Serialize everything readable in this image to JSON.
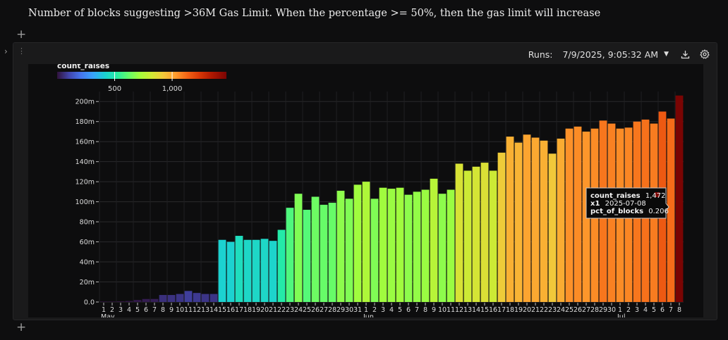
{
  "notebook": {
    "title": "Number of blocks suggesting >36M Gas Limit. When the percentage >= 50%, then the gas limit will increase"
  },
  "toolbar": {
    "runs_label": "Runs:",
    "run_value": "7/9/2025, 9:05:32 AM"
  },
  "icons": {
    "add_cell_top": "plus-icon",
    "add_cell_bottom": "plus-icon",
    "collapse": "chevron-right-icon",
    "drag": "drag-handle-icon",
    "download": "download-icon",
    "settings": "gear-icon"
  },
  "chart_data": {
    "type": "bar",
    "color_field": "count_raises",
    "legend": {
      "title": "count_raises",
      "ticks": [
        500,
        1000
      ],
      "tick_labels": [
        "500",
        "1,000"
      ],
      "domain": [
        0,
        1472
      ]
    },
    "ylim": [
      0,
      210000000
    ],
    "y_ticks": [
      0,
      20000000,
      40000000,
      60000000,
      80000000,
      100000000,
      120000000,
      140000000,
      160000000,
      180000000,
      200000000
    ],
    "y_tick_labels": [
      "0.0",
      "20m",
      "40m",
      "60m",
      "80m",
      "100m",
      "120m",
      "140m",
      "160m",
      "180m",
      "200m"
    ],
    "x_labels": [
      "1",
      "2",
      "3",
      "4",
      "5",
      "6",
      "7",
      "8",
      "9",
      "10",
      "11",
      "12",
      "13",
      "14",
      "15",
      "16",
      "17",
      "18",
      "19",
      "20",
      "21",
      "22",
      "23",
      "24",
      "25",
      "26",
      "27",
      "28",
      "29",
      "30",
      "31",
      "1",
      "2",
      "3",
      "4",
      "5",
      "6",
      "7",
      "8",
      "9",
      "10",
      "11",
      "12",
      "13",
      "14",
      "15",
      "16",
      "17",
      "18",
      "19",
      "20",
      "21",
      "22",
      "23",
      "24",
      "25",
      "26",
      "27",
      "28",
      "29",
      "30",
      "1",
      "2",
      "3",
      "4",
      "5",
      "6",
      "7",
      "8"
    ],
    "month_labels": [
      {
        "label": "May",
        "index": 0
      },
      {
        "label": "Jun",
        "index": 31
      },
      {
        "label": "Jul",
        "index": 61
      }
    ],
    "values_m": [
      0.5,
      0.5,
      0.7,
      1,
      2,
      3,
      3,
      7,
      7,
      8,
      11,
      9,
      8,
      8,
      62,
      60,
      66,
      62,
      62,
      63,
      61,
      72,
      94,
      108,
      92,
      105,
      97,
      99,
      111,
      103,
      117,
      120,
      103,
      114,
      113,
      114,
      107,
      110,
      112,
      123,
      108,
      112,
      138,
      131,
      135,
      139,
      131,
      149,
      165,
      159,
      167,
      164,
      161,
      148,
      163,
      173,
      175,
      170,
      173,
      181,
      178,
      173,
      174,
      180,
      182,
      178,
      190,
      183,
      206
    ],
    "counts": [
      5,
      5,
      6,
      10,
      15,
      20,
      25,
      60,
      65,
      70,
      90,
      80,
      70,
      70,
      430,
      430,
      470,
      450,
      450,
      450,
      440,
      520,
      600,
      680,
      610,
      650,
      640,
      640,
      700,
      680,
      730,
      760,
      680,
      730,
      720,
      730,
      700,
      710,
      720,
      780,
      700,
      720,
      860,
      830,
      850,
      870,
      830,
      930,
      1000,
      990,
      1030,
      1020,
      1000,
      940,
      1010,
      1070,
      1080,
      1060,
      1080,
      1120,
      1100,
      1080,
      1090,
      1120,
      1130,
      1110,
      1180,
      1140,
      1472
    ],
    "tooltip": {
      "rows": [
        {
          "key": "count_raises",
          "value": "1,472"
        },
        {
          "key": "x1",
          "value": "2025-07-08"
        },
        {
          "key": "pct_of_blocks",
          "value": "0.206"
        }
      ],
      "swatch_color": "#7a0403"
    }
  }
}
